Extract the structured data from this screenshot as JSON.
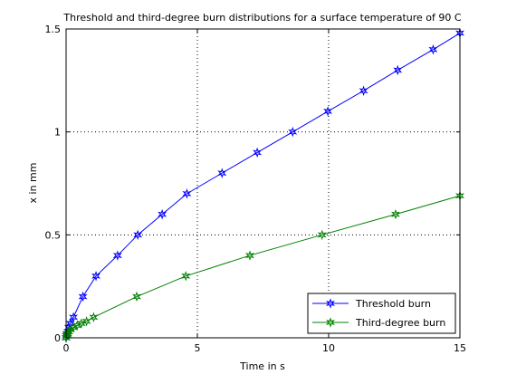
{
  "chart_data": {
    "type": "line",
    "title": "Threshold and third-degree burn distributions for a surface temperature of 90 C",
    "xlabel": "Time in s",
    "ylabel": "x in mm",
    "xlim": [
      0,
      15
    ],
    "ylim": [
      0,
      1.5
    ],
    "xticks": [
      0,
      5,
      10,
      15
    ],
    "yticks": [
      0,
      0.5,
      1,
      1.5
    ],
    "xtick_labels": [
      "0",
      "5",
      "10",
      "15"
    ],
    "ytick_labels": [
      "0",
      "0.5",
      "1",
      "1.5"
    ],
    "grid": true,
    "grid_style": "dotted",
    "legend_position": "bottom-right",
    "series": [
      {
        "name": "Threshold burn",
        "color": "#0000ff",
        "marker": "hexagram",
        "x": [
          0,
          0.01,
          0.03,
          0.07,
          0.1,
          0.16,
          0.28,
          0.64,
          1.14,
          1.96,
          2.73,
          3.66,
          4.6,
          5.94,
          7.28,
          8.63,
          9.97,
          11.33,
          12.63,
          13.98,
          15
        ],
        "y": [
          0,
          0.01,
          0.02,
          0.03,
          0.05,
          0.07,
          0.1,
          0.2,
          0.3,
          0.4,
          0.5,
          0.6,
          0.7,
          0.8,
          0.9,
          1.0,
          1.1,
          1.2,
          1.3,
          1.4,
          1.48
        ]
      },
      {
        "name": "Third-degree burn",
        "color": "#008000",
        "marker": "hexagram",
        "x": [
          0,
          0.02,
          0.04,
          0.07,
          0.1,
          0.17,
          0.28,
          0.42,
          0.58,
          0.78,
          1.05,
          2.69,
          4.56,
          7.0,
          9.75,
          12.55,
          15
        ],
        "y": [
          0,
          0.01,
          0.015,
          0.02,
          0.03,
          0.04,
          0.05,
          0.06,
          0.07,
          0.08,
          0.1,
          0.2,
          0.3,
          0.4,
          0.5,
          0.6,
          0.69
        ]
      }
    ]
  }
}
